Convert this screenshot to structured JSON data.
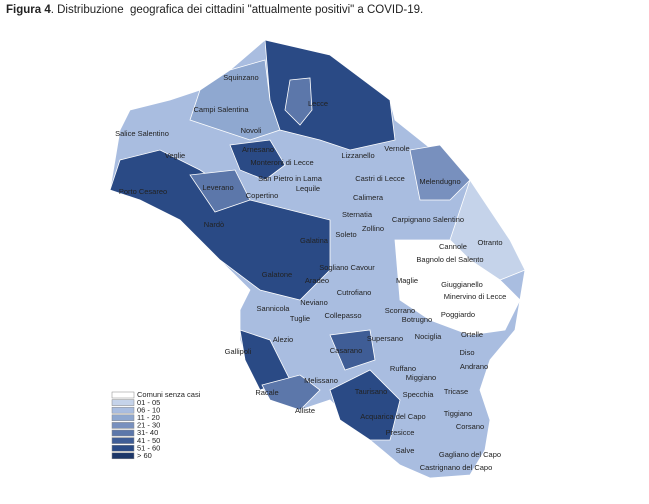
{
  "title": {
    "label": "Figura 4",
    "text": ". Distribuzione  geografica dei cittadini \"attualmente positivi\" a COVID-19."
  },
  "legend": [
    {
      "label": "Comuni senza casi",
      "color": "#ffffff"
    },
    {
      "label": "01 - 05",
      "color": "#c5d3ea"
    },
    {
      "label": "06 - 10",
      "color": "#a9bde0"
    },
    {
      "label": "11 - 20",
      "color": "#8fa8d0"
    },
    {
      "label": "21 - 30",
      "color": "#7890be"
    },
    {
      "label": "31- 40",
      "color": "#5c77aa"
    },
    {
      "label": "41 - 50",
      "color": "#3f5d96"
    },
    {
      "label": "51 - 60",
      "color": "#2a4a85"
    },
    {
      "label": "> 60",
      "color": "#1c3668"
    }
  ],
  "places": [
    "Squinzano",
    "Lecce",
    "Campi Salentina",
    "Salice Salentino",
    "Novoli",
    "Arnesano",
    "Monteroni di Lecce",
    "Vernole",
    "Lizzanello",
    "Veglie",
    "San Pietro in Lama",
    "Castri di Lecce",
    "Melendugno",
    "Porto Cesareo",
    "Leverano",
    "Lequile",
    "Copertino",
    "Calimera",
    "Sternatia",
    "Carpignano Salentino",
    "Nardò",
    "Zollino",
    "Soleto",
    "Galatina",
    "Cannole",
    "Otranto",
    "Bagnolo del Salento",
    "Sogliano Cavour",
    "Galatone",
    "Aradeo",
    "Maglie",
    "Giuggianello",
    "Cutrofiano",
    "Minervino di Lecce",
    "Neviano",
    "Sannicola",
    "Tuglie",
    "Collepasso",
    "Scorrano",
    "Poggiardo",
    "Alezio",
    "Supersano",
    "Nociglia",
    "Botrugno",
    "Ortelle",
    "Gallipoli",
    "Casarano",
    "Diso",
    "Ruffano",
    "Andrano",
    "Miggiano",
    "Melissano",
    "Racale",
    "Taurisano",
    "Specchia",
    "Tricase",
    "Alliste",
    "Acquarica del Capo",
    "Tiggiano",
    "Presicce",
    "Corsano",
    "Salve",
    "Gagliano del Capo",
    "Castrignano del Capo"
  ]
}
